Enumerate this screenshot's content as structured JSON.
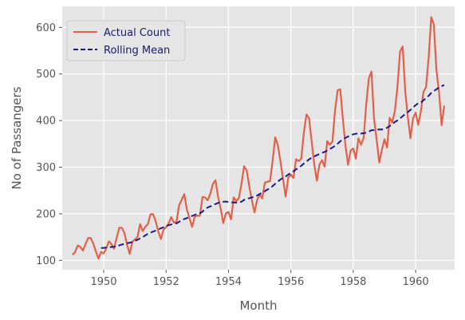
{
  "chart_data": {
    "type": "line",
    "xlabel": "Month",
    "ylabel": "No of Passangers",
    "xlim": [
      1948.67,
      1961.25
    ],
    "ylim": [
      80,
      645
    ],
    "x_ticks": [
      1950,
      1952,
      1954,
      1956,
      1958,
      1960
    ],
    "y_ticks": [
      100,
      200,
      300,
      400,
      500,
      600
    ],
    "grid": true,
    "legend": "top-left",
    "x_start": 1949.0,
    "x_step": 0.08333333,
    "series": [
      {
        "name": "Actual Count",
        "style": "solid",
        "color": "#e2604a",
        "values": [
          112,
          118,
          132,
          129,
          121,
          135,
          148,
          148,
          136,
          119,
          104,
          118,
          115,
          126,
          141,
          135,
          125,
          149,
          170,
          170,
          158,
          133,
          114,
          140,
          145,
          150,
          178,
          163,
          172,
          178,
          199,
          199,
          184,
          162,
          146,
          166,
          171,
          180,
          193,
          181,
          183,
          218,
          230,
          242,
          209,
          191,
          172,
          194,
          196,
          196,
          236,
          235,
          229,
          243,
          264,
          272,
          237,
          211,
          180,
          201,
          204,
          188,
          235,
          227,
          234,
          264,
          302,
          293,
          259,
          229,
          203,
          229,
          242,
          233,
          267,
          269,
          270,
          315,
          364,
          347,
          312,
          274,
          237,
          278,
          284,
          277,
          317,
          313,
          318,
          374,
          413,
          405,
          355,
          306,
          271,
          306,
          315,
          301,
          356,
          348,
          355,
          422,
          465,
          467,
          404,
          347,
          305,
          336,
          340,
          318,
          362,
          348,
          363,
          435,
          491,
          505,
          404,
          359,
          310,
          337,
          360,
          342,
          406,
          396,
          420,
          472,
          548,
          559,
          463,
          407,
          362,
          405,
          417,
          391,
          419,
          461,
          472,
          535,
          622,
          606,
          508,
          461,
          390,
          432
        ]
      },
      {
        "name": "Rolling Mean",
        "style": "dashed",
        "color": "#1a1a8c",
        "values": [
          null,
          null,
          null,
          null,
          null,
          null,
          null,
          null,
          null,
          null,
          null,
          126.7,
          126.9,
          127.6,
          128.3,
          128.8,
          129.2,
          130.5,
          132.3,
          134.1,
          135.8,
          137.0,
          137.8,
          139.7,
          142.2,
          144.2,
          147.3,
          149.8,
          153.8,
          156.9,
          159.4,
          161.8,
          163.9,
          166.3,
          169.0,
          171.1,
          173.3,
          175.8,
          177.1,
          178.6,
          179.5,
          182.8,
          185.4,
          188.8,
          190.8,
          193.2,
          195.4,
          197.7,
          199.8,
          201.2,
          204.6,
          209.8,
          213.6,
          215.7,
          218.5,
          221.0,
          223.3,
          225.0,
          225.7,
          226.3,
          225.2,
          224.5,
          224.5,
          223.8,
          224.2,
          225.9,
          229.9,
          231.7,
          233.5,
          235.0,
          236.9,
          239.2,
          242.2,
          246.0,
          248.6,
          252.1,
          255.1,
          259.4,
          264.6,
          269.2,
          273.6,
          277.3,
          280.1,
          284.2,
          287.4,
          291.1,
          295.3,
          299.0,
          303.0,
          307.9,
          312.0,
          316.8,
          320.3,
          323.0,
          325.8,
          328.3,
          330.8,
          332.8,
          336.1,
          339.0,
          342.1,
          346.1,
          350.4,
          355.5,
          359.5,
          363.0,
          365.8,
          368.4,
          370.5,
          371.8,
          372.3,
          372.2,
          372.9,
          374.0,
          376.2,
          379.4,
          379.4,
          380.5,
          380.9,
          381.0,
          382.7,
          384.7,
          388.3,
          392.3,
          397.1,
          400.2,
          404.9,
          409.4,
          414.3,
          418.3,
          422.7,
          428.3,
          433.1,
          437.2,
          438.3,
          443.7,
          448.0,
          453.2,
          459.4,
          463.3,
          467.1,
          471.6,
          473.9,
          476.2
        ]
      }
    ]
  }
}
